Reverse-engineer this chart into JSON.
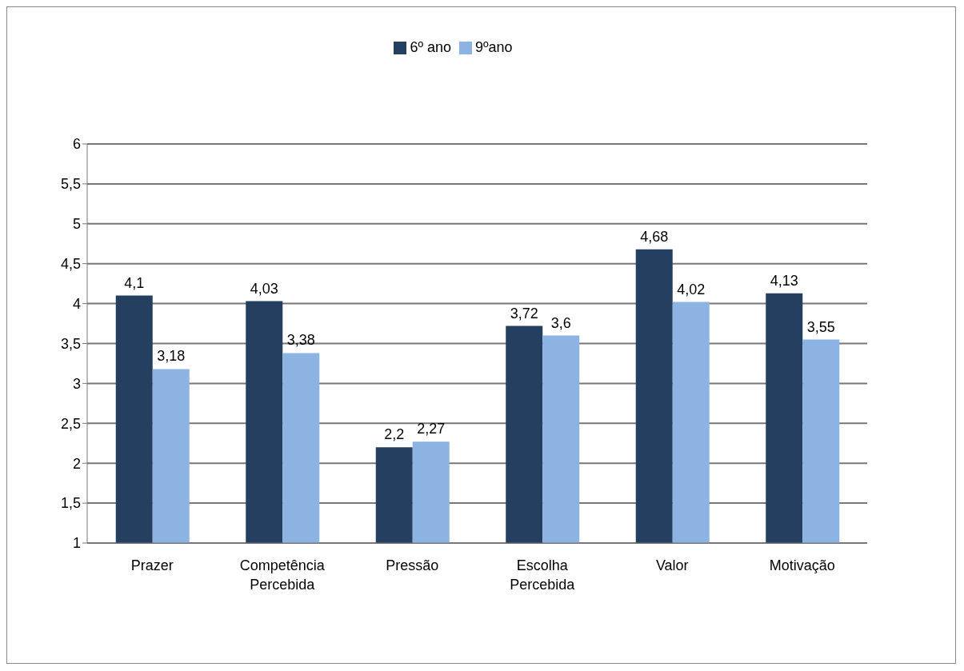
{
  "chart_data": {
    "type": "bar",
    "categories": [
      "Prazer",
      "Competência Percebida",
      "Pressão",
      "Escolha Percebida",
      "Valor",
      "Motivação"
    ],
    "series": [
      {
        "name": "6º ano",
        "color": "#243f60",
        "values": [
          4.1,
          4.03,
          2.2,
          3.72,
          4.68,
          4.13
        ],
        "value_labels": [
          "4,1",
          "4,03",
          "2,2",
          "3,72",
          "4,68",
          "4,13"
        ]
      },
      {
        "name": "9ºano",
        "color": "#8db3e2",
        "values": [
          3.18,
          3.38,
          2.27,
          3.6,
          4.02,
          3.55
        ],
        "value_labels": [
          "3,18",
          "3,38",
          "2,27",
          "3,6",
          "4,02",
          "3,55"
        ]
      }
    ],
    "ylim": [
      1,
      6
    ],
    "yticks": [
      1,
      {
        "value": 1.5,
        "label": "1,5"
      },
      2,
      {
        "value": 2.5,
        "label": "2,5"
      },
      3,
      {
        "value": 3.5,
        "label": "3,5"
      },
      4,
      {
        "value": 4.5,
        "label": "4,5"
      },
      5,
      {
        "value": 5.5,
        "label": "5,5"
      },
      6
    ],
    "grid": "y",
    "legend": "top"
  }
}
